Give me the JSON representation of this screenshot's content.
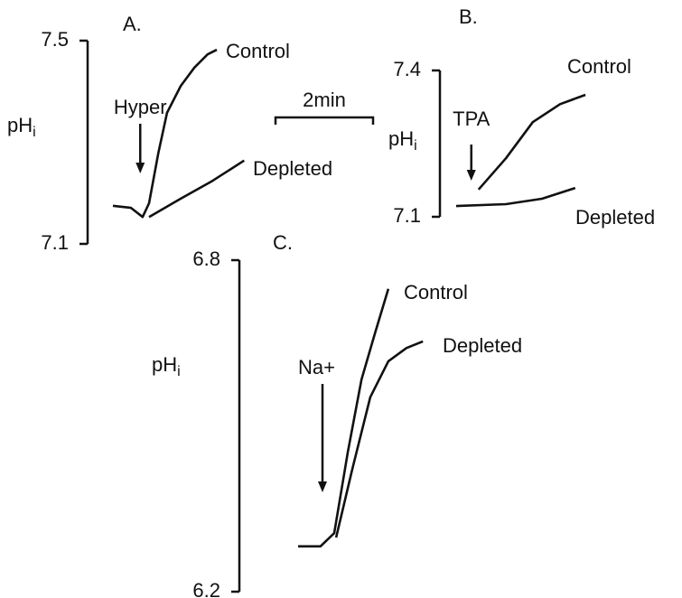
{
  "chart_data": [
    {
      "type": "line",
      "title": "A.",
      "ylabel": "pH",
      "ylabel_sub": "i",
      "ylim": [
        7.1,
        7.5
      ],
      "yticks": [
        7.1,
        7.5
      ],
      "color": "#111111",
      "scale_bar": {
        "value": 2,
        "label": "2min"
      },
      "annotation": {
        "label": "Hyper",
        "at": 0.56
      },
      "series": [
        {
          "name": "Control",
          "x": [
            0,
            0.37,
            0.61,
            0.74,
            0.93,
            1.11,
            1.39,
            1.67,
            1.94,
            2.13
          ],
          "values": [
            7.175,
            7.171,
            7.153,
            7.18,
            7.278,
            7.358,
            7.411,
            7.447,
            7.473,
            7.482
          ]
        },
        {
          "name": "Depleted",
          "x": [
            0.74,
            1.39,
            2.04,
            2.69
          ],
          "values": [
            7.153,
            7.189,
            7.224,
            7.264
          ]
        }
      ]
    },
    {
      "type": "line",
      "title": "B.",
      "ylabel": "pH",
      "ylabel_sub": "i",
      "ylim": [
        7.1,
        7.4
      ],
      "yticks": [
        7.1,
        7.4
      ],
      "color": "#111111",
      "annotation": {
        "label": "TPA",
        "at": 0.31
      },
      "series": [
        {
          "name": "Control",
          "x": [
            0.46,
            1.02,
            1.57,
            2.13,
            2.65
          ],
          "values": [
            7.156,
            7.22,
            7.294,
            7.331,
            7.35
          ]
        },
        {
          "name": "Depleted",
          "x": [
            0,
            1.02,
            1.76,
            2.44
          ],
          "values": [
            7.122,
            7.126,
            7.137,
            7.159
          ]
        }
      ]
    },
    {
      "type": "line",
      "title": "C.",
      "ylabel": "pH",
      "ylabel_sub": "i",
      "ylim": [
        6.2,
        6.8
      ],
      "yticks": [
        6.2,
        6.8
      ],
      "color": "#111111",
      "annotation": {
        "label": "Na+",
        "at": 0.5
      },
      "series": [
        {
          "name": "Control",
          "x": [
            0,
            0.46,
            0.74,
            1.02,
            1.3,
            1.57,
            1.85
          ],
          "values": [
            6.282,
            6.282,
            6.306,
            6.453,
            6.584,
            6.666,
            6.748
          ]
        },
        {
          "name": "Depleted",
          "x": [
            0.78,
            1.11,
            1.48,
            1.85,
            2.22,
            2.56
          ],
          "values": [
            6.298,
            6.421,
            6.552,
            6.617,
            6.641,
            6.653
          ]
        }
      ]
    }
  ]
}
